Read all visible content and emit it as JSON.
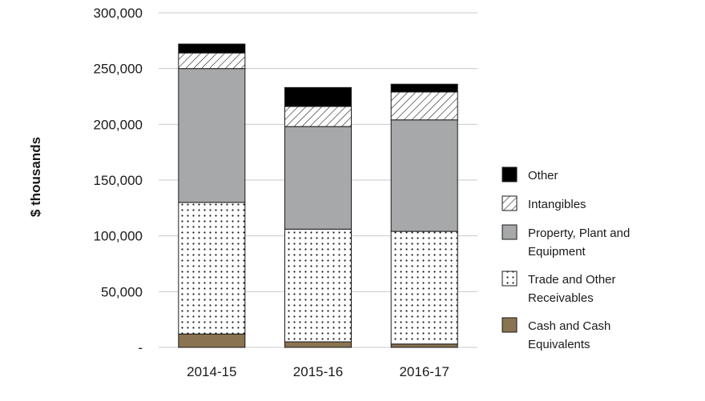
{
  "chart_data": {
    "type": "bar",
    "stacked": true,
    "ylabel": "$ thousands",
    "ylim": [
      0,
      300000
    ],
    "y_ticks": [
      "-",
      "50,000",
      "100,000",
      "150,000",
      "200,000",
      "250,000",
      "300,000"
    ],
    "grid": true,
    "legend_position": "right",
    "categories": [
      "2014-15",
      "2015-16",
      "2016-17"
    ],
    "series": [
      {
        "name": "Cash and Cash Equivalents",
        "values": [
          12000,
          5000,
          3000
        ],
        "color": "#8a7350",
        "pattern": "solid"
      },
      {
        "name": "Trade and Other Receivables",
        "values": [
          118000,
          101000,
          101000
        ],
        "color": "#ffffff",
        "pattern": "dots"
      },
      {
        "name": "Property, Plant and Equipment",
        "values": [
          120000,
          92000,
          100000
        ],
        "color": "#a7a8aa",
        "pattern": "solid"
      },
      {
        "name": "Intangibles",
        "values": [
          14000,
          18000,
          25000
        ],
        "color": "#ffffff",
        "pattern": "hatch"
      },
      {
        "name": "Other",
        "values": [
          8000,
          17000,
          7000
        ],
        "color": "#000000",
        "pattern": "solid"
      }
    ]
  },
  "legend": {
    "items": [
      {
        "lines": [
          "Other"
        ],
        "series": 4
      },
      {
        "lines": [
          "Intangibles"
        ],
        "series": 3
      },
      {
        "lines": [
          "Property, Plant and",
          "Equipment"
        ],
        "series": 2
      },
      {
        "lines": [
          "Trade and Other",
          "Receivables"
        ],
        "series": 1
      },
      {
        "lines": [
          "Cash and Cash",
          "Equivalents"
        ],
        "series": 0
      }
    ]
  }
}
